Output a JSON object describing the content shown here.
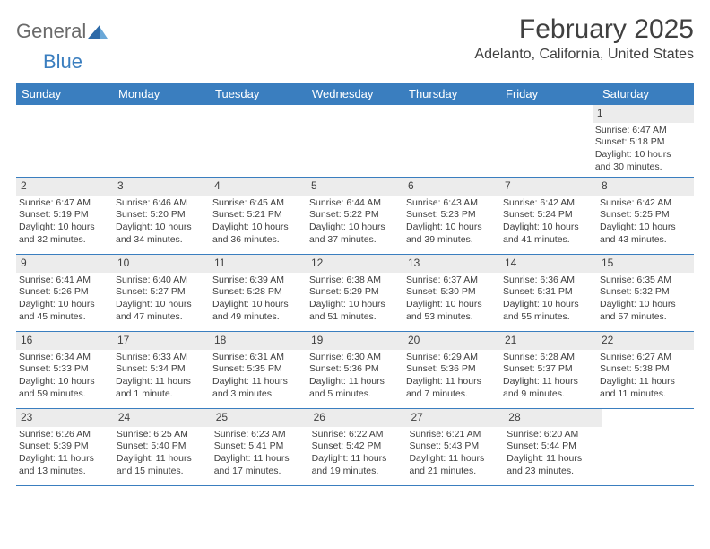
{
  "brand": {
    "text1": "General",
    "text2": "Blue"
  },
  "title": "February 2025",
  "subtitle": "Adelanto, California, United States",
  "header_bg": "#3a7ebf",
  "weekdays": [
    "Sunday",
    "Monday",
    "Tuesday",
    "Wednesday",
    "Thursday",
    "Friday",
    "Saturday"
  ],
  "weeks": [
    [
      null,
      null,
      null,
      null,
      null,
      null,
      {
        "n": "1",
        "sr": "Sunrise: 6:47 AM",
        "ss": "Sunset: 5:18 PM",
        "dl1": "Daylight: 10 hours",
        "dl2": "and 30 minutes."
      }
    ],
    [
      {
        "n": "2",
        "sr": "Sunrise: 6:47 AM",
        "ss": "Sunset: 5:19 PM",
        "dl1": "Daylight: 10 hours",
        "dl2": "and 32 minutes."
      },
      {
        "n": "3",
        "sr": "Sunrise: 6:46 AM",
        "ss": "Sunset: 5:20 PM",
        "dl1": "Daylight: 10 hours",
        "dl2": "and 34 minutes."
      },
      {
        "n": "4",
        "sr": "Sunrise: 6:45 AM",
        "ss": "Sunset: 5:21 PM",
        "dl1": "Daylight: 10 hours",
        "dl2": "and 36 minutes."
      },
      {
        "n": "5",
        "sr": "Sunrise: 6:44 AM",
        "ss": "Sunset: 5:22 PM",
        "dl1": "Daylight: 10 hours",
        "dl2": "and 37 minutes."
      },
      {
        "n": "6",
        "sr": "Sunrise: 6:43 AM",
        "ss": "Sunset: 5:23 PM",
        "dl1": "Daylight: 10 hours",
        "dl2": "and 39 minutes."
      },
      {
        "n": "7",
        "sr": "Sunrise: 6:42 AM",
        "ss": "Sunset: 5:24 PM",
        "dl1": "Daylight: 10 hours",
        "dl2": "and 41 minutes."
      },
      {
        "n": "8",
        "sr": "Sunrise: 6:42 AM",
        "ss": "Sunset: 5:25 PM",
        "dl1": "Daylight: 10 hours",
        "dl2": "and 43 minutes."
      }
    ],
    [
      {
        "n": "9",
        "sr": "Sunrise: 6:41 AM",
        "ss": "Sunset: 5:26 PM",
        "dl1": "Daylight: 10 hours",
        "dl2": "and 45 minutes."
      },
      {
        "n": "10",
        "sr": "Sunrise: 6:40 AM",
        "ss": "Sunset: 5:27 PM",
        "dl1": "Daylight: 10 hours",
        "dl2": "and 47 minutes."
      },
      {
        "n": "11",
        "sr": "Sunrise: 6:39 AM",
        "ss": "Sunset: 5:28 PM",
        "dl1": "Daylight: 10 hours",
        "dl2": "and 49 minutes."
      },
      {
        "n": "12",
        "sr": "Sunrise: 6:38 AM",
        "ss": "Sunset: 5:29 PM",
        "dl1": "Daylight: 10 hours",
        "dl2": "and 51 minutes."
      },
      {
        "n": "13",
        "sr": "Sunrise: 6:37 AM",
        "ss": "Sunset: 5:30 PM",
        "dl1": "Daylight: 10 hours",
        "dl2": "and 53 minutes."
      },
      {
        "n": "14",
        "sr": "Sunrise: 6:36 AM",
        "ss": "Sunset: 5:31 PM",
        "dl1": "Daylight: 10 hours",
        "dl2": "and 55 minutes."
      },
      {
        "n": "15",
        "sr": "Sunrise: 6:35 AM",
        "ss": "Sunset: 5:32 PM",
        "dl1": "Daylight: 10 hours",
        "dl2": "and 57 minutes."
      }
    ],
    [
      {
        "n": "16",
        "sr": "Sunrise: 6:34 AM",
        "ss": "Sunset: 5:33 PM",
        "dl1": "Daylight: 10 hours",
        "dl2": "and 59 minutes."
      },
      {
        "n": "17",
        "sr": "Sunrise: 6:33 AM",
        "ss": "Sunset: 5:34 PM",
        "dl1": "Daylight: 11 hours",
        "dl2": "and 1 minute."
      },
      {
        "n": "18",
        "sr": "Sunrise: 6:31 AM",
        "ss": "Sunset: 5:35 PM",
        "dl1": "Daylight: 11 hours",
        "dl2": "and 3 minutes."
      },
      {
        "n": "19",
        "sr": "Sunrise: 6:30 AM",
        "ss": "Sunset: 5:36 PM",
        "dl1": "Daylight: 11 hours",
        "dl2": "and 5 minutes."
      },
      {
        "n": "20",
        "sr": "Sunrise: 6:29 AM",
        "ss": "Sunset: 5:36 PM",
        "dl1": "Daylight: 11 hours",
        "dl2": "and 7 minutes."
      },
      {
        "n": "21",
        "sr": "Sunrise: 6:28 AM",
        "ss": "Sunset: 5:37 PM",
        "dl1": "Daylight: 11 hours",
        "dl2": "and 9 minutes."
      },
      {
        "n": "22",
        "sr": "Sunrise: 6:27 AM",
        "ss": "Sunset: 5:38 PM",
        "dl1": "Daylight: 11 hours",
        "dl2": "and 11 minutes."
      }
    ],
    [
      {
        "n": "23",
        "sr": "Sunrise: 6:26 AM",
        "ss": "Sunset: 5:39 PM",
        "dl1": "Daylight: 11 hours",
        "dl2": "and 13 minutes."
      },
      {
        "n": "24",
        "sr": "Sunrise: 6:25 AM",
        "ss": "Sunset: 5:40 PM",
        "dl1": "Daylight: 11 hours",
        "dl2": "and 15 minutes."
      },
      {
        "n": "25",
        "sr": "Sunrise: 6:23 AM",
        "ss": "Sunset: 5:41 PM",
        "dl1": "Daylight: 11 hours",
        "dl2": "and 17 minutes."
      },
      {
        "n": "26",
        "sr": "Sunrise: 6:22 AM",
        "ss": "Sunset: 5:42 PM",
        "dl1": "Daylight: 11 hours",
        "dl2": "and 19 minutes."
      },
      {
        "n": "27",
        "sr": "Sunrise: 6:21 AM",
        "ss": "Sunset: 5:43 PM",
        "dl1": "Daylight: 11 hours",
        "dl2": "and 21 minutes."
      },
      {
        "n": "28",
        "sr": "Sunrise: 6:20 AM",
        "ss": "Sunset: 5:44 PM",
        "dl1": "Daylight: 11 hours",
        "dl2": "and 23 minutes."
      },
      null
    ]
  ]
}
